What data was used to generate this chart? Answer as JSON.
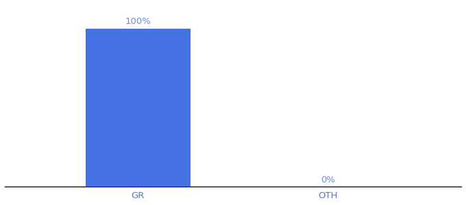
{
  "categories": [
    "GR",
    "OTH"
  ],
  "values": [
    100,
    0
  ],
  "bar_color": "#4472e3",
  "label_color": "#6b8dd6",
  "xlabel_color": "#5577cc",
  "bar_width": 0.55,
  "ylim": [
    0,
    115
  ],
  "value_labels": [
    "100%",
    "0%"
  ],
  "label_fontsize": 9.5,
  "xlabel_fontsize": 9.5,
  "background_color": "#ffffff",
  "axis_line_color": "#111111",
  "figsize": [
    6.8,
    3.0
  ],
  "dpi": 100,
  "x_positions": [
    1,
    2
  ],
  "xlim": [
    0.3,
    2.7
  ]
}
